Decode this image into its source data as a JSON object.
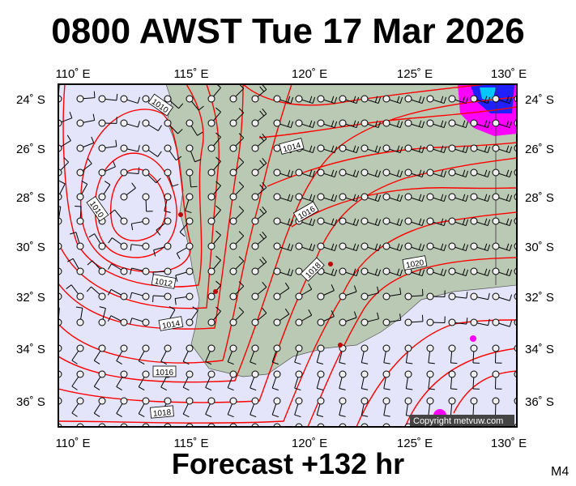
{
  "title": "0800 AWST Tue 17 Mar 2026",
  "subtitle": "Forecast +132 hr",
  "model_code": "M4",
  "copyright": "Copyright metvuw.com",
  "axes": {
    "lon_labels": [
      "110˚ E",
      "115˚ E",
      "120˚ E",
      "125˚ E",
      "130˚ E"
    ],
    "lat_labels": [
      "24˚ S",
      "26˚ S",
      "28˚ S",
      "30˚ S",
      "32˚ S",
      "34˚ S",
      "36˚ S"
    ]
  },
  "isobar_labels": [
    "1010",
    "1014",
    "1016",
    "1018",
    "1020",
    "1010",
    "1012",
    "1014",
    "1016",
    "1018"
  ],
  "colors": {
    "ocean": "#e4e4fa",
    "land": "#b9c9b3",
    "isobar": "#ff0000",
    "rain_heavy": "#0000ff",
    "rain_medium": "#ff00ff",
    "rain_light": "#00c8ff"
  }
}
